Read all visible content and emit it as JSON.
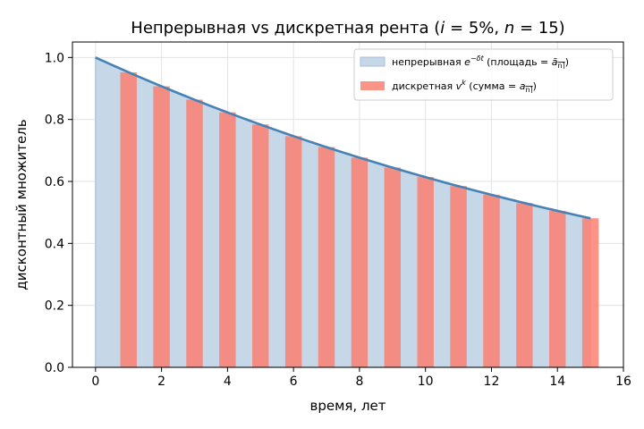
{
  "chart_data": {
    "type": "bar",
    "title": "Непрерывная vs дискретная рента (i = 5%, n = 15)",
    "xlabel": "время, лет",
    "ylabel": "дисконтный множитель",
    "xlim": [
      -0.7,
      16
    ],
    "ylim": [
      0,
      1.05
    ],
    "xticks": [
      0,
      2,
      4,
      6,
      8,
      10,
      12,
      14,
      16
    ],
    "yticks": [
      0.0,
      0.2,
      0.4,
      0.6,
      0.8,
      1.0
    ],
    "x_tick_labels": [
      "0",
      "2",
      "4",
      "6",
      "8",
      "10",
      "12",
      "14",
      "16"
    ],
    "y_tick_labels": [
      "0.0",
      "0.2",
      "0.4",
      "0.6",
      "0.8",
      "1.0"
    ],
    "grid": true,
    "legend_position": "top-right",
    "interest_rate": 0.05,
    "term_years": 15,
    "continuous": {
      "type": "area",
      "legend": "непрерывная e^{−δt} (площадь = ā_n⌉)",
      "x": [
        0,
        1,
        2,
        3,
        4,
        5,
        6,
        7,
        8,
        9,
        10,
        11,
        12,
        13,
        14,
        15
      ],
      "y": [
        1.0,
        0.952,
        0.907,
        0.864,
        0.823,
        0.784,
        0.746,
        0.711,
        0.677,
        0.645,
        0.614,
        0.585,
        0.557,
        0.53,
        0.505,
        0.481
      ],
      "fill_color": "#c6d7e8",
      "line_color": "#4682b4"
    },
    "discrete": {
      "type": "bar",
      "legend": "дискретная v^k (сумма = a_n⌉)",
      "x": [
        1,
        2,
        3,
        4,
        5,
        6,
        7,
        8,
        9,
        10,
        11,
        12,
        13,
        14,
        15
      ],
      "values": [
        0.952,
        0.907,
        0.864,
        0.823,
        0.784,
        0.746,
        0.711,
        0.677,
        0.645,
        0.614,
        0.585,
        0.557,
        0.53,
        0.505,
        0.481
      ],
      "color": "#fa8072"
    }
  }
}
